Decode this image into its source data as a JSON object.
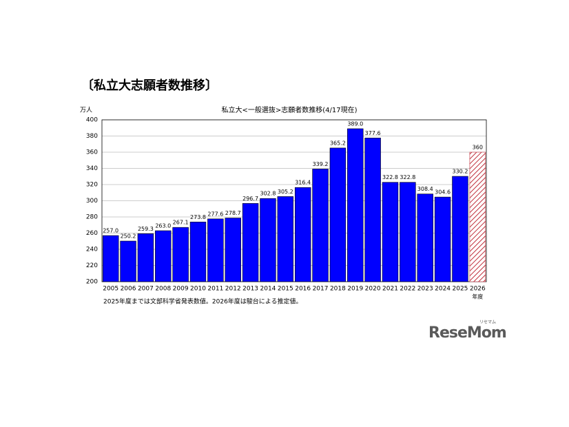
{
  "page_title": "〔私立大志願者数推移〕",
  "logo": {
    "text": "ReseMom",
    "ruby": "リセマム"
  },
  "chart_data": {
    "type": "bar",
    "title": "私立大<一般選抜>志願者数推移(4/17現在)",
    "y_unit": "万人",
    "x_unit": "年度",
    "note": "2025年度までは文部科学省発表数値。2026年度は駿台による推定値。",
    "categories": [
      "2005",
      "2006",
      "2007",
      "2008",
      "2009",
      "2010",
      "2011",
      "2012",
      "2013",
      "2014",
      "2015",
      "2016",
      "2017",
      "2018",
      "2019",
      "2020",
      "2021",
      "2022",
      "2023",
      "2024",
      "2025",
      "2026"
    ],
    "values": [
      257.0,
      250.2,
      259.3,
      263.0,
      267.1,
      273.8,
      277.6,
      278.7,
      296.7,
      302.8,
      305.2,
      316.4,
      339.2,
      365.2,
      389.0,
      377.6,
      322.8,
      322.8,
      308.4,
      304.6,
      330.2,
      360
    ],
    "value_labels": [
      "257.0",
      "250.2",
      "259.3",
      "263.0",
      "267.1",
      "273.8",
      "277.6",
      "278.7",
      "296.7",
      "302.8",
      "305.2",
      "316.4",
      "339.2",
      "365.2",
      "389.0",
      "377.6",
      "322.8",
      "322.8",
      "308.4",
      "304.6",
      "330.2",
      "360"
    ],
    "color": "#0000ff",
    "hatched": [
      false,
      false,
      false,
      false,
      false,
      false,
      false,
      false,
      false,
      false,
      false,
      false,
      false,
      false,
      false,
      false,
      false,
      false,
      false,
      false,
      false,
      true
    ],
    "hatch_color": "#c0303c",
    "ylim": [
      200,
      400
    ],
    "yticks": [
      200,
      220,
      240,
      260,
      280,
      300,
      320,
      340,
      360,
      380,
      400
    ],
    "grid": true
  }
}
